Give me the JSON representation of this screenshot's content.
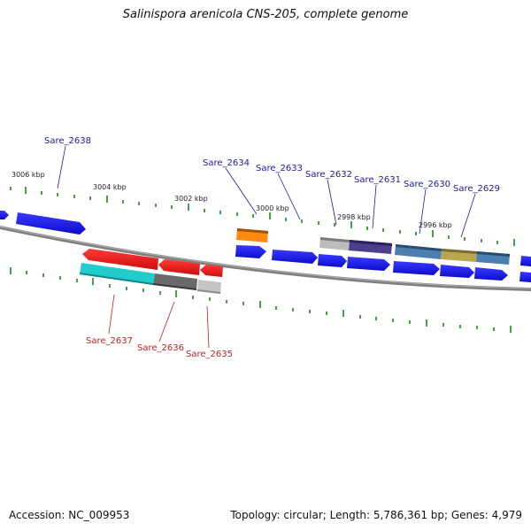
{
  "title": "Salinispora arenicola CNS-205, complete genome",
  "accession": "Accession: NC_009953",
  "summary": "Topology: circular; Length: 5,786,361 bp; Genes: 4,979",
  "colors": {
    "forward_cds": "#1414e6",
    "reverse_cds": "#e61414",
    "backbone": "#808080",
    "ticks": "#1a8a1a",
    "forward_label": "#1a1aa8",
    "reverse_label": "#c81e1e"
  },
  "kbp_labels": [
    "3006 kbp",
    "3004 kbp",
    "3002 kbp",
    "3000 kbp",
    "2998 kbp",
    "2996 kbp"
  ],
  "forward_gene_labels": [
    "Sare_2638",
    "Sare_2634",
    "Sare_2633",
    "Sare_2632",
    "Sare_2631",
    "Sare_2630",
    "Sare_2629"
  ],
  "reverse_gene_labels": [
    "Sare_2637",
    "Sare_2636",
    "Sare_2635"
  ]
}
